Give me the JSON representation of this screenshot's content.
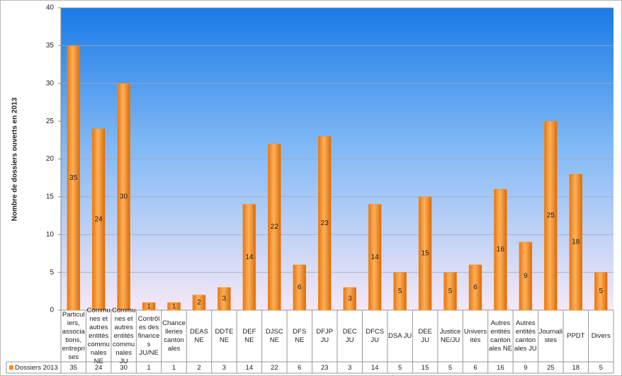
{
  "chart_data": {
    "type": "bar",
    "y_axis_label": "Nombre de dossiers ouverts en 2013",
    "categories": [
      "Particuliers, associations, entreprises",
      "Communes et autres entités communales NE",
      "Communes et autres entités communales JU",
      "Contrôles des finances JU/NE",
      "Chancelleries cantonales",
      "DEAS NE",
      "DDTE NE",
      "DEF NE",
      "DJSC NE",
      "DFS NE",
      "DFJP JU",
      "DEC JU",
      "DFCS JU",
      "DSA JU",
      "DEE JU",
      "Justice NE/JU",
      "Universités",
      "Autres entités cantonales NE",
      "Autres entités cantonales JU",
      "Journalistes",
      "PPDT",
      "Divers"
    ],
    "series": [
      {
        "name": "Dossiers 2013",
        "color": "#f28e1c",
        "values": [
          35,
          24,
          30,
          1,
          1,
          2,
          3,
          14,
          22,
          6,
          23,
          3,
          14,
          5,
          15,
          5,
          6,
          16,
          9,
          25,
          18,
          5
        ]
      }
    ],
    "ylim": [
      0,
      40
    ],
    "yticks": [
      0,
      5,
      10,
      15,
      20,
      25,
      30,
      35,
      40
    ],
    "grid": true,
    "data_table": true
  }
}
